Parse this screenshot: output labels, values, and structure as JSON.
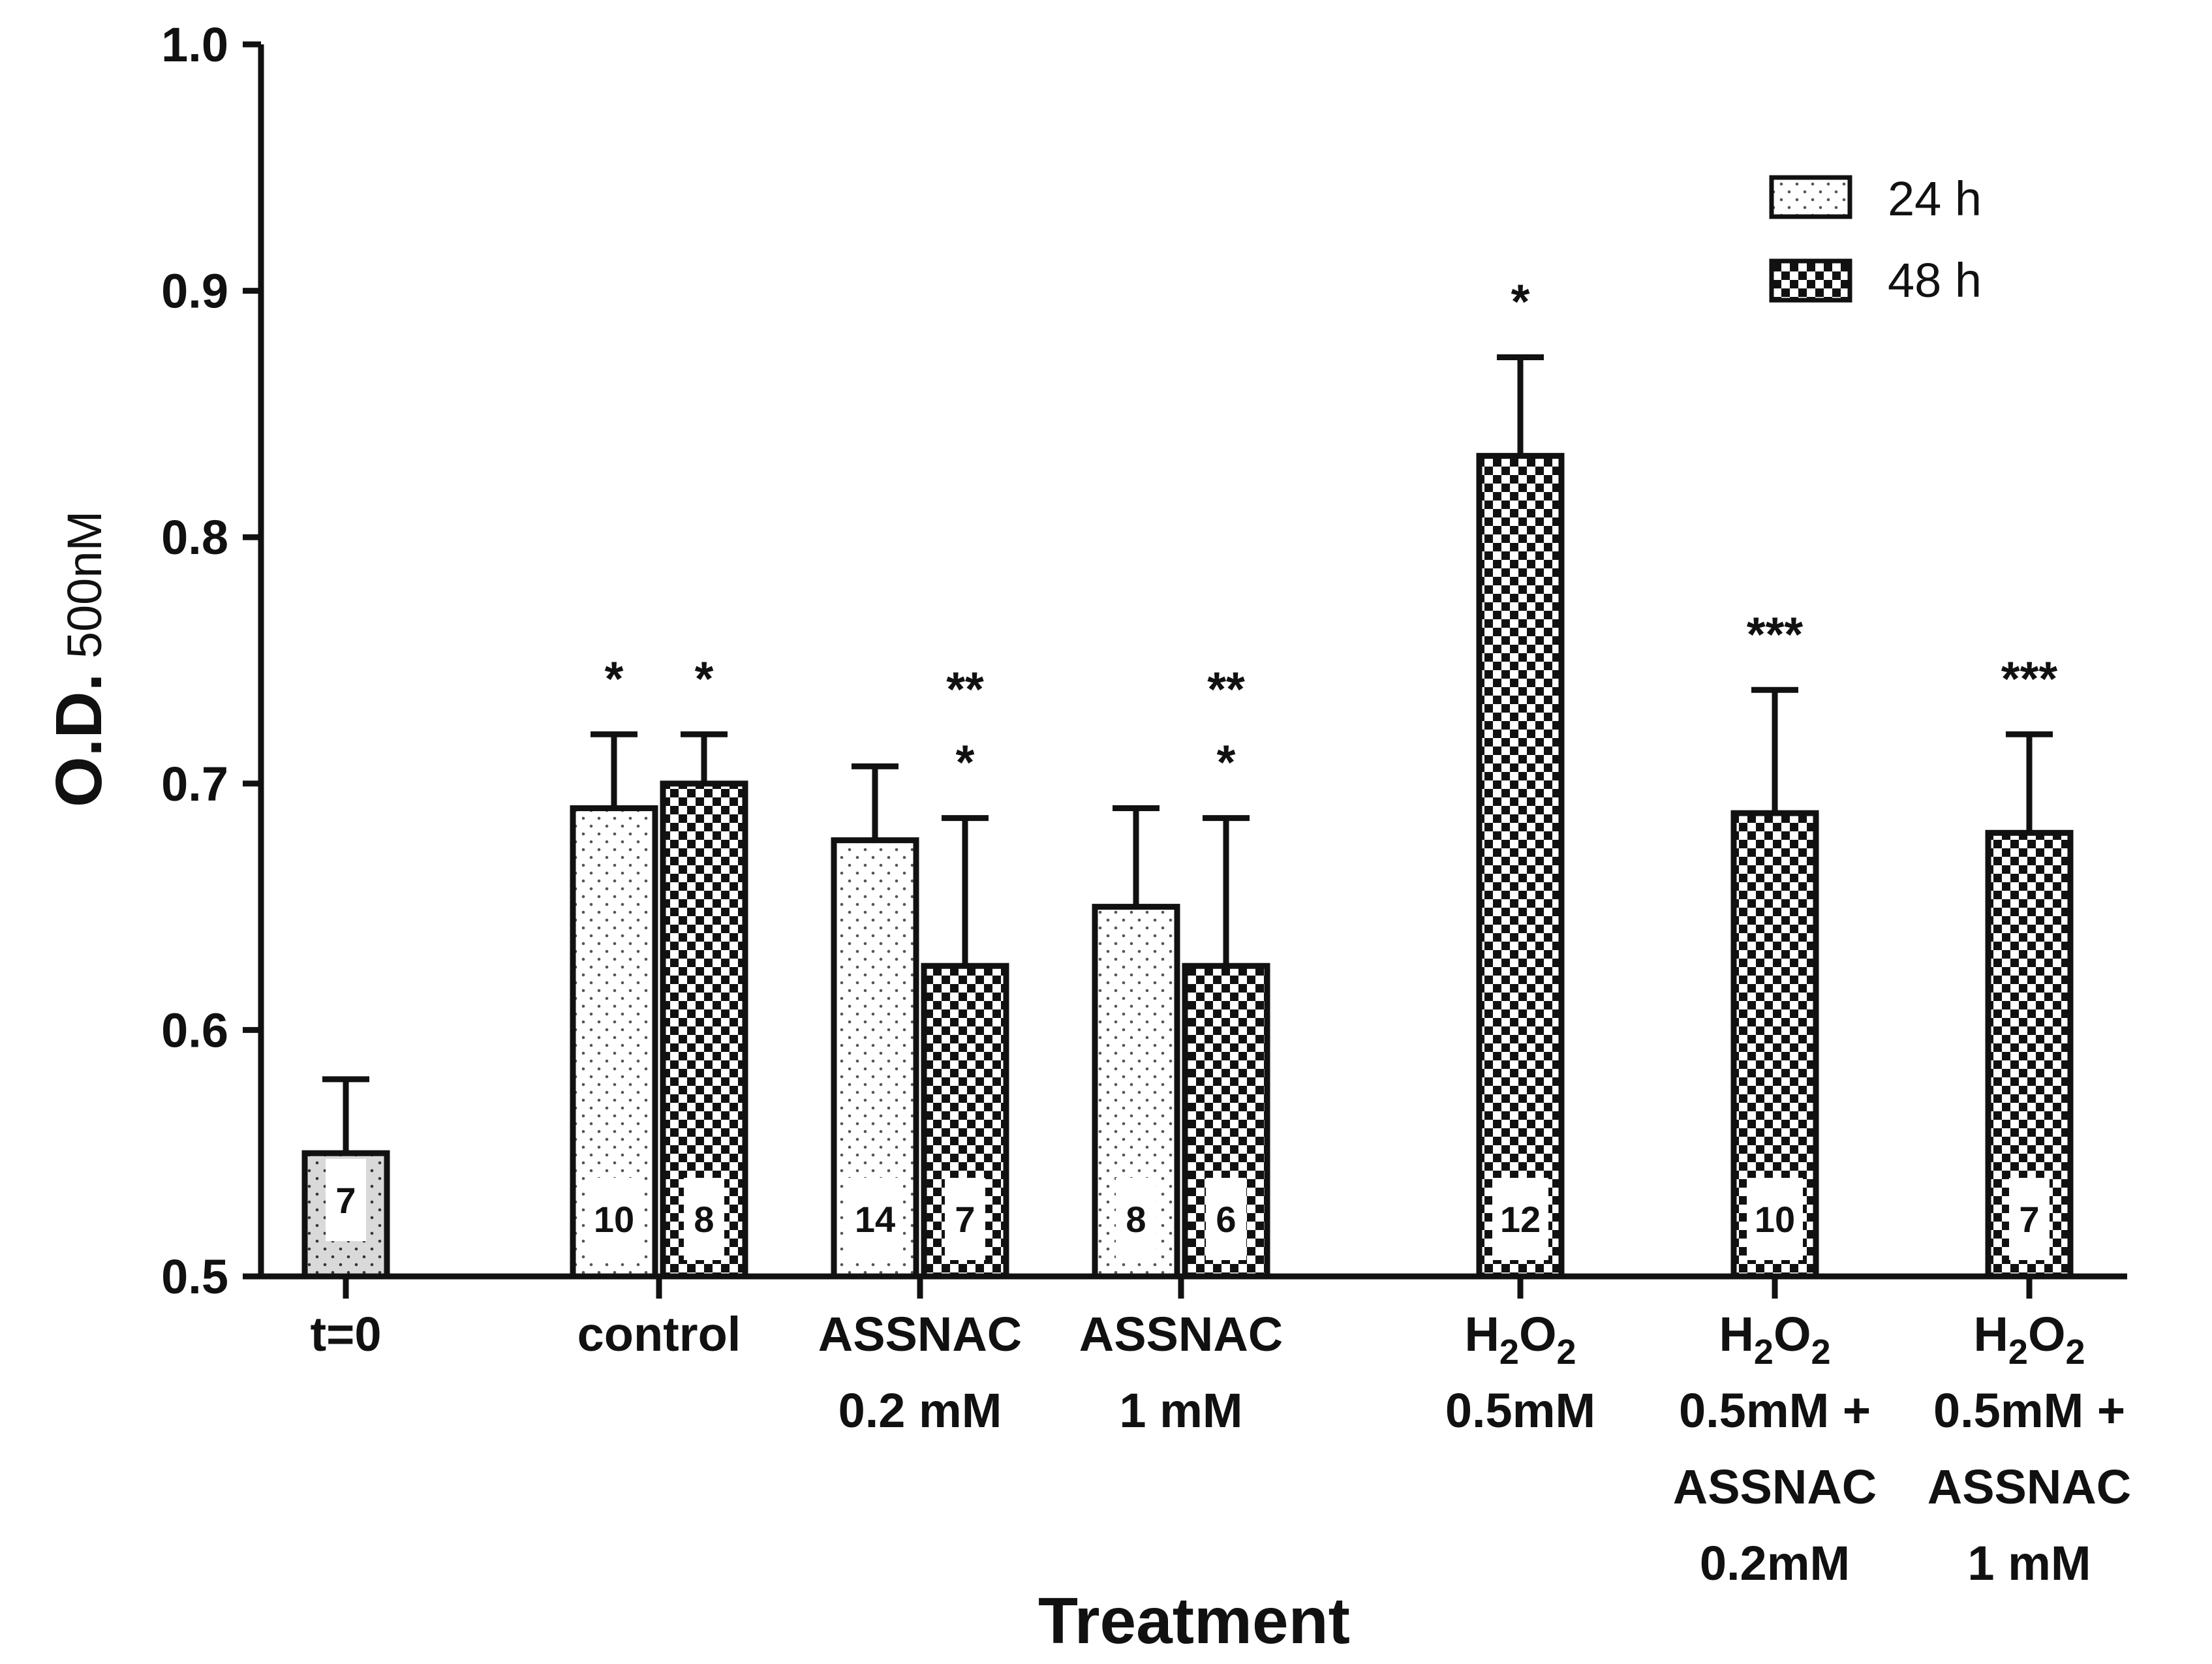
{
  "chart_data": {
    "type": "bar",
    "title": "",
    "xlabel": "Treatment",
    "ylabel": "O.D.",
    "ylabel_subscript": "500nM",
    "ylim": [
      0.5,
      1.0
    ],
    "yticks": [
      "0.5",
      "0.6",
      "0.7",
      "0.8",
      "0.9",
      "1.0"
    ],
    "legend": {
      "position": "top-right",
      "entries": [
        "24 h",
        "48 h"
      ]
    },
    "categories": [
      {
        "lines": [
          {
            "t": "t=0"
          }
        ]
      },
      {
        "lines": [
          {
            "t": "control"
          }
        ]
      },
      {
        "lines": [
          {
            "t": "ASSNAC"
          },
          {
            "t": "0.2 mM"
          }
        ]
      },
      {
        "lines": [
          {
            "t": "ASSNAC"
          },
          {
            "t": "1 mM"
          }
        ]
      },
      {
        "lines": [
          {
            "t": "H",
            "sub": "2",
            "t2": "O",
            "sub2": "2"
          },
          {
            "t": "0.5mM"
          }
        ]
      },
      {
        "lines": [
          {
            "t": "H",
            "sub": "2",
            "t2": "O",
            "sub2": "2"
          },
          {
            "t": "0.5mM +"
          },
          {
            "t": "ASSNAC"
          },
          {
            "t": "0.2mM"
          }
        ]
      },
      {
        "lines": [
          {
            "t": "H",
            "sub": "2",
            "t2": "O",
            "sub2": "2"
          },
          {
            "t": "0.5mM +"
          },
          {
            "t": "ASSNAC"
          },
          {
            "t": "1 mM"
          }
        ]
      }
    ],
    "bars": [
      {
        "cat": 0,
        "series": "t=0",
        "value": 0.55,
        "error": 0.03,
        "n": "7",
        "stars": []
      },
      {
        "cat": 1,
        "series": "24 h",
        "value": 0.69,
        "error": 0.03,
        "n": "10",
        "stars": [
          "*"
        ]
      },
      {
        "cat": 1,
        "series": "48 h",
        "value": 0.7,
        "error": 0.02,
        "n": "8",
        "stars": [
          "*"
        ]
      },
      {
        "cat": 2,
        "series": "24 h",
        "value": 0.677,
        "error": 0.03,
        "n": "14",
        "stars": []
      },
      {
        "cat": 2,
        "series": "48 h",
        "value": 0.626,
        "error": 0.06,
        "n": "7",
        "stars": [
          "**",
          "*"
        ]
      },
      {
        "cat": 3,
        "series": "24 h",
        "value": 0.65,
        "error": 0.04,
        "n": "8",
        "stars": []
      },
      {
        "cat": 3,
        "series": "48 h",
        "value": 0.626,
        "error": 0.06,
        "n": "6",
        "stars": [
          "**",
          "*"
        ]
      },
      {
        "cat": 4,
        "series": "48 h",
        "value": 0.833,
        "error": 0.04,
        "n": "12",
        "stars": [
          "*"
        ]
      },
      {
        "cat": 5,
        "series": "48 h",
        "value": 0.688,
        "error": 0.05,
        "n": "10",
        "stars": [
          "***"
        ]
      },
      {
        "cat": 6,
        "series": "48 h",
        "value": 0.68,
        "error": 0.04,
        "n": "7",
        "stars": [
          "***"
        ]
      }
    ]
  },
  "colors": {
    "ink": "#111111",
    "t0_fill": "#d9d9d9",
    "background": "#ffffff"
  }
}
